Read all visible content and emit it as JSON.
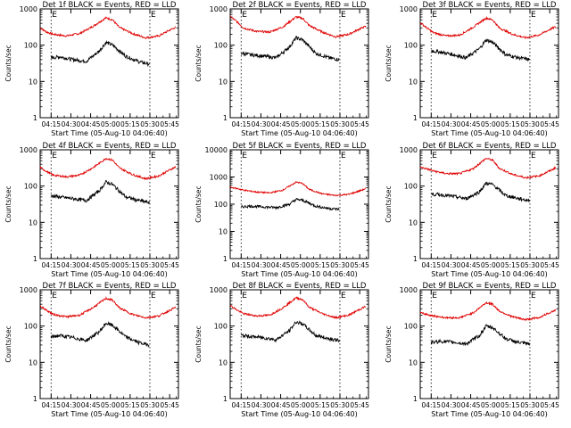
{
  "colors": {
    "events": "#000000",
    "lld": "#e00000",
    "axes": "#000000",
    "background": "#ffffff"
  },
  "chart_data": [
    {
      "type": "line",
      "title": "Det 1f BLACK = Events, RED = LLD",
      "xlabel": "Start Time (05-Aug-10 04:06:40)",
      "ylabel": "Counts/sec",
      "y_scale": "log",
      "ylim": [
        1,
        1000
      ],
      "y_ticks": [
        "1",
        "10",
        "100",
        "1000"
      ],
      "x_ticks": [
        "04:15",
        "04:30",
        "04:45",
        "05:00",
        "05:15",
        "05:30",
        "05:45"
      ],
      "xlim_minutes": [
        0,
        105
      ],
      "markers": [
        {
          "label": "E",
          "x_minutes": 8.3
        },
        {
          "label": "E",
          "x_minutes": 83.3
        }
      ],
      "series": [
        {
          "color": "red",
          "x_minutes": [
            0,
            5,
            10,
            20,
            30,
            40,
            50,
            55,
            60,
            70,
            80,
            90,
            100,
            103
          ],
          "values": [
            300,
            230,
            200,
            180,
            210,
            330,
            570,
            500,
            310,
            210,
            160,
            180,
            280,
            310
          ]
        },
        {
          "color": "black",
          "x_minutes": [
            8.3,
            15,
            25,
            35,
            45,
            50,
            55,
            65,
            75,
            83
          ],
          "values": [
            45,
            48,
            40,
            36,
            70,
            120,
            100,
            50,
            35,
            30
          ]
        }
      ]
    },
    {
      "type": "line",
      "title": "Det 2f BLACK = Events, RED = LLD",
      "xlabel": "Start Time (05-Aug-10 04:06:40)",
      "ylabel": "Counts/sec",
      "y_scale": "log",
      "ylim": [
        1,
        1000
      ],
      "y_ticks": [
        "1",
        "10",
        "100",
        "1000"
      ],
      "x_ticks": [
        "04:15",
        "04:30",
        "04:45",
        "05:00",
        "05:15",
        "05:30",
        "05:45"
      ],
      "xlim_minutes": [
        0,
        105
      ],
      "markers": [
        {
          "label": "E",
          "x_minutes": 8.3
        },
        {
          "label": "E",
          "x_minutes": 83.3
        }
      ],
      "series": [
        {
          "color": "red",
          "x_minutes": [
            0,
            5,
            10,
            20,
            30,
            40,
            50,
            55,
            60,
            70,
            80,
            90,
            100,
            103
          ],
          "values": [
            620,
            450,
            300,
            240,
            230,
            320,
            600,
            550,
            350,
            230,
            170,
            200,
            300,
            330
          ]
        },
        {
          "color": "black",
          "x_minutes": [
            8.3,
            15,
            25,
            35,
            45,
            50,
            55,
            65,
            75,
            83
          ],
          "values": [
            60,
            55,
            50,
            45,
            90,
            160,
            140,
            60,
            45,
            40
          ]
        }
      ]
    },
    {
      "type": "line",
      "title": "Det 3f BLACK = Events, RED = LLD",
      "xlabel": "Start Time (05-Aug-10 04:06:40)",
      "ylabel": "Counts/sec",
      "y_scale": "log",
      "ylim": [
        1,
        1000
      ],
      "y_ticks": [
        "1",
        "10",
        "100",
        "1000"
      ],
      "x_ticks": [
        "04:15",
        "04:30",
        "04:45",
        "05:00",
        "05:15",
        "05:30",
        "05:45"
      ],
      "xlim_minutes": [
        0,
        105
      ],
      "markers": [
        {
          "label": "E",
          "x_minutes": 8.3
        },
        {
          "label": "E",
          "x_minutes": 83.3
        }
      ],
      "series": [
        {
          "color": "red",
          "x_minutes": [
            0,
            5,
            10,
            20,
            30,
            40,
            50,
            55,
            60,
            70,
            80,
            90,
            100,
            103
          ],
          "values": [
            420,
            300,
            220,
            180,
            190,
            310,
            560,
            500,
            300,
            200,
            160,
            190,
            290,
            320
          ]
        },
        {
          "color": "black",
          "x_minutes": [
            8.3,
            15,
            25,
            35,
            45,
            50,
            55,
            65,
            75,
            83
          ],
          "values": [
            70,
            65,
            55,
            45,
            80,
            140,
            120,
            55,
            45,
            40
          ]
        }
      ]
    },
    {
      "type": "line",
      "title": "Det 4f BLACK = Events, RED = LLD",
      "xlabel": "Start Time (05-Aug-10 04:06:40)",
      "ylabel": "Counts/sec",
      "y_scale": "log",
      "ylim": [
        1,
        1000
      ],
      "y_ticks": [
        "1",
        "10",
        "100",
        "1000"
      ],
      "x_ticks": [
        "04:15",
        "04:30",
        "04:45",
        "05:00",
        "05:15",
        "05:30",
        "05:45"
      ],
      "xlim_minutes": [
        0,
        105
      ],
      "markers": [
        {
          "label": "E",
          "x_minutes": 8.3
        },
        {
          "label": "E",
          "x_minutes": 83.3
        }
      ],
      "series": [
        {
          "color": "red",
          "x_minutes": [
            0,
            5,
            10,
            20,
            30,
            40,
            50,
            55,
            60,
            70,
            80,
            90,
            100,
            103
          ],
          "values": [
            330,
            250,
            200,
            180,
            200,
            320,
            580,
            520,
            320,
            210,
            160,
            190,
            300,
            340
          ]
        },
        {
          "color": "black",
          "x_minutes": [
            8.3,
            15,
            25,
            35,
            45,
            50,
            55,
            65,
            75,
            83
          ],
          "values": [
            55,
            50,
            45,
            40,
            75,
            130,
            110,
            50,
            40,
            35
          ]
        }
      ]
    },
    {
      "type": "line",
      "title": "Det 5f BLACK = Events, RED = LLD",
      "xlabel": "Start Time (05-Aug-10 04:06:40)",
      "ylabel": "Counts/sec",
      "y_scale": "log",
      "ylim": [
        1,
        10000
      ],
      "y_ticks": [
        "1",
        "10",
        "100",
        "1000",
        "10000"
      ],
      "x_ticks": [
        "04:15",
        "04:30",
        "04:45",
        "05:00",
        "05:15",
        "05:30",
        "05:45"
      ],
      "xlim_minutes": [
        0,
        105
      ],
      "markers": [
        {
          "label": "E",
          "x_minutes": 8.3
        },
        {
          "label": "E",
          "x_minutes": 83.3
        }
      ],
      "series": [
        {
          "color": "red",
          "x_minutes": [
            0,
            5,
            10,
            20,
            30,
            40,
            50,
            55,
            60,
            70,
            80,
            90,
            100,
            103
          ],
          "values": [
            420,
            380,
            330,
            280,
            260,
            330,
            650,
            580,
            350,
            240,
            210,
            230,
            330,
            380
          ]
        },
        {
          "color": "black",
          "x_minutes": [
            8.3,
            15,
            25,
            35,
            45,
            50,
            55,
            65,
            75,
            83
          ],
          "values": [
            80,
            85,
            80,
            75,
            100,
            150,
            140,
            85,
            70,
            65
          ]
        }
      ]
    },
    {
      "type": "line",
      "title": "Det 6f BLACK = Events, RED = LLD",
      "xlabel": "Start Time (05-Aug-10 04:06:40)",
      "ylabel": "Counts/sec",
      "y_scale": "log",
      "ylim": [
        1,
        1000
      ],
      "y_ticks": [
        "1",
        "10",
        "100",
        "1000"
      ],
      "x_ticks": [
        "04:15",
        "04:30",
        "04:45",
        "05:00",
        "05:15",
        "05:30",
        "05:45"
      ],
      "xlim_minutes": [
        0,
        105
      ],
      "markers": [
        {
          "label": "E",
          "x_minutes": 8.3
        },
        {
          "label": "E",
          "x_minutes": 83.3
        }
      ],
      "series": [
        {
          "color": "red",
          "x_minutes": [
            0,
            5,
            10,
            20,
            30,
            40,
            50,
            55,
            60,
            70,
            80,
            90,
            100,
            103
          ],
          "values": [
            330,
            300,
            260,
            220,
            220,
            300,
            580,
            520,
            310,
            210,
            170,
            190,
            280,
            330
          ]
        },
        {
          "color": "black",
          "x_minutes": [
            8.3,
            15,
            25,
            35,
            45,
            50,
            55,
            65,
            75,
            83
          ],
          "values": [
            60,
            58,
            52,
            45,
            70,
            120,
            110,
            55,
            45,
            40
          ]
        }
      ]
    },
    {
      "type": "line",
      "title": "Det 7f BLACK = Events, RED = LLD",
      "xlabel": "Start Time (05-Aug-10 04:06:40)",
      "ylabel": "Counts/sec",
      "y_scale": "log",
      "ylim": [
        1,
        1000
      ],
      "y_ticks": [
        "1",
        "10",
        "100",
        "1000"
      ],
      "x_ticks": [
        "04:15",
        "04:30",
        "04:45",
        "05:00",
        "05:15",
        "05:30",
        "05:45"
      ],
      "xlim_minutes": [
        0,
        105
      ],
      "markers": [
        {
          "label": "E",
          "x_minutes": 8.3
        },
        {
          "label": "E",
          "x_minutes": 83.3
        }
      ],
      "series": [
        {
          "color": "red",
          "x_minutes": [
            0,
            5,
            10,
            20,
            30,
            40,
            50,
            55,
            60,
            70,
            80,
            90,
            100,
            103
          ],
          "values": [
            360,
            270,
            210,
            180,
            200,
            320,
            580,
            520,
            320,
            210,
            170,
            190,
            290,
            330
          ]
        },
        {
          "color": "black",
          "x_minutes": [
            8.3,
            15,
            25,
            35,
            45,
            50,
            55,
            65,
            75,
            83
          ],
          "values": [
            50,
            55,
            48,
            40,
            70,
            120,
            105,
            50,
            35,
            30
          ]
        }
      ]
    },
    {
      "type": "line",
      "title": "Det 8f BLACK = Events, RED = LLD",
      "xlabel": "Start Time (05-Aug-10 04:06:40)",
      "ylabel": "Counts/sec",
      "y_scale": "log",
      "ylim": [
        1,
        1000
      ],
      "y_ticks": [
        "1",
        "10",
        "100",
        "1000"
      ],
      "x_ticks": [
        "04:15",
        "04:30",
        "04:45",
        "05:00",
        "05:15",
        "05:30",
        "05:45"
      ],
      "xlim_minutes": [
        0,
        105
      ],
      "markers": [
        {
          "label": "E",
          "x_minutes": 8.3
        },
        {
          "label": "E",
          "x_minutes": 83.3
        }
      ],
      "series": [
        {
          "color": "red",
          "x_minutes": [
            0,
            5,
            10,
            20,
            30,
            40,
            50,
            55,
            60,
            70,
            80,
            90,
            100,
            103
          ],
          "values": [
            370,
            280,
            220,
            190,
            200,
            320,
            600,
            540,
            330,
            220,
            170,
            200,
            310,
            350
          ]
        },
        {
          "color": "black",
          "x_minutes": [
            8.3,
            15,
            25,
            35,
            45,
            50,
            55,
            65,
            75,
            83
          ],
          "values": [
            55,
            52,
            48,
            42,
            75,
            130,
            115,
            55,
            45,
            40
          ]
        }
      ]
    },
    {
      "type": "line",
      "title": "Det 9f BLACK = Events, RED = LLD",
      "xlabel": "Start Time (05-Aug-10 04:06:40)",
      "ylabel": "Counts/sec",
      "y_scale": "log",
      "ylim": [
        1,
        1000
      ],
      "y_ticks": [
        "1",
        "10",
        "100",
        "1000"
      ],
      "x_ticks": [
        "04:15",
        "04:30",
        "04:45",
        "05:00",
        "05:15",
        "05:30",
        "05:45"
      ],
      "xlim_minutes": [
        0,
        105
      ],
      "markers": [
        {
          "label": "E",
          "x_minutes": 8.3
        },
        {
          "label": "E",
          "x_minutes": 83.3
        }
      ],
      "series": [
        {
          "color": "red",
          "x_minutes": [
            0,
            5,
            10,
            20,
            30,
            40,
            50,
            55,
            60,
            70,
            80,
            90,
            100,
            103
          ],
          "values": [
            230,
            210,
            190,
            170,
            170,
            230,
            440,
            400,
            260,
            180,
            150,
            170,
            250,
            280
          ]
        },
        {
          "color": "black",
          "x_minutes": [
            8.3,
            15,
            25,
            35,
            45,
            50,
            55,
            65,
            75,
            83
          ],
          "values": [
            35,
            38,
            36,
            32,
            55,
            100,
            90,
            45,
            35,
            32
          ]
        }
      ]
    }
  ]
}
